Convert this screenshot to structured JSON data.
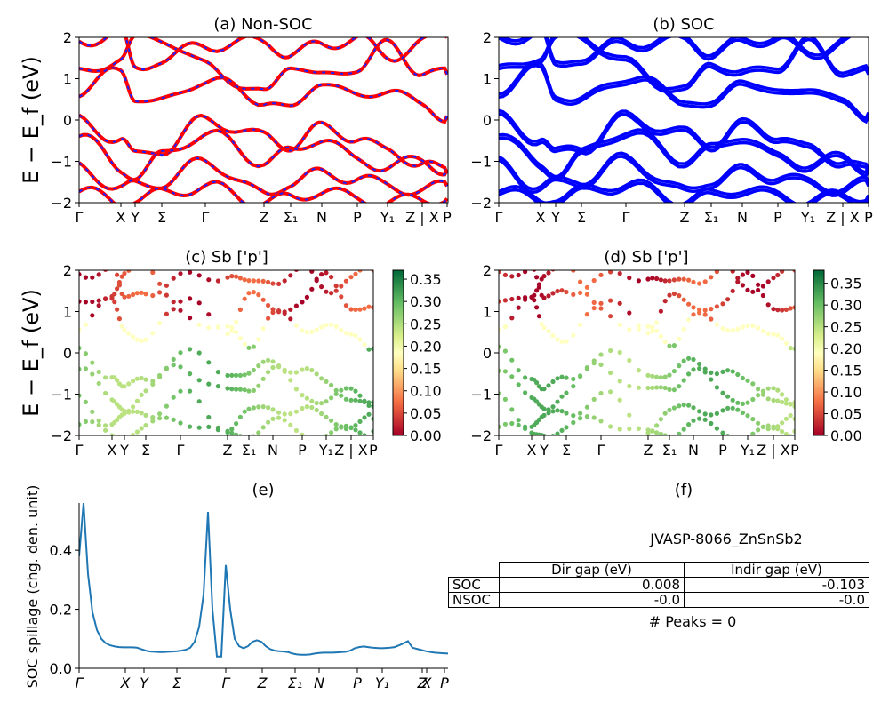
{
  "chart_data": [
    {
      "type": "line",
      "title": "(a) Non-SOC",
      "ylabel": "E − E_f (eV)",
      "ylim": [
        -2,
        2
      ],
      "yticks": [
        "2",
        "1",
        "0",
        "−1",
        "−2"
      ],
      "xticks": [
        "Γ",
        "X",
        "Y",
        "Σ",
        "Γ",
        "Z",
        "Σ₁",
        "N",
        "P",
        "Y₁",
        "Z | X",
        "P"
      ],
      "colors": {
        "primary": "#ff0000",
        "secondary": "#1f1fff"
      },
      "series_style": "red-blue dashed",
      "legend": "none"
    },
    {
      "type": "line",
      "title": "(b) SOC",
      "ylim": [
        -2,
        2
      ],
      "yticks": [
        "2",
        "1",
        "0",
        "−1",
        "−2"
      ],
      "xticks": [
        "Γ",
        "X",
        "Y",
        "Σ",
        "Γ",
        "Z",
        "Σ₁",
        "N",
        "P",
        "Y₁",
        "Z | X",
        "P"
      ],
      "colors": {
        "primary": "#0000ff"
      },
      "legend": "none"
    },
    {
      "type": "scatter",
      "title": "(c)  Sb ['p']",
      "ylabel": "E − E_f (eV)",
      "ylim": [
        -2,
        2
      ],
      "yticks": [
        "2",
        "1",
        "0",
        "−1",
        "−2"
      ],
      "xticks": [
        "Γ",
        "X",
        "Y",
        "Σ",
        "Γ",
        "Z",
        "Σ₁",
        "N",
        "P",
        "Y₁",
        "Z | X",
        "P"
      ],
      "colorbar": {
        "min": 0.0,
        "max": 0.37,
        "ticks": [
          "0.35",
          "0.30",
          "0.25",
          "0.20",
          "0.15",
          "0.10",
          "0.05",
          "0.00"
        ],
        "cmap": "RdYlGn"
      }
    },
    {
      "type": "scatter",
      "title": "(d) Sb ['p']",
      "ylim": [
        -2,
        2
      ],
      "yticks": [
        "2",
        "1",
        "0",
        "−1",
        "−2"
      ],
      "xticks": [
        "Γ",
        "X",
        "Y",
        "Σ",
        "Γ",
        "Z",
        "Σ₁",
        "N",
        "P",
        "Y₁",
        "Z | X",
        "P"
      ],
      "colorbar": {
        "min": 0.0,
        "max": 0.38,
        "ticks": [
          "0.35",
          "0.30",
          "0.25",
          "0.20",
          "0.15",
          "0.10",
          "0.05",
          "0.00"
        ],
        "cmap": "RdYlGn"
      }
    },
    {
      "type": "line",
      "title": "(e)",
      "ylabel": "SOC spillage (chg. den. unit)",
      "ylim": [
        0,
        0.56
      ],
      "yticks": [
        "0.4",
        "0.2",
        "0.0"
      ],
      "xticks": [
        "Γ",
        "X",
        "Y",
        "Σ",
        "Γ",
        "Z",
        "Σ₁",
        "N",
        "P",
        "Y₁",
        "Z",
        "X",
        "P"
      ],
      "colors": {
        "line": "#1f77b4"
      },
      "x": [
        0,
        1,
        2,
        3,
        4,
        5,
        6,
        7,
        8,
        9,
        10,
        11,
        12,
        13,
        14,
        15,
        16,
        17,
        18,
        19,
        20,
        21,
        22,
        23,
        24,
        25,
        26,
        27,
        28,
        29,
        30,
        31,
        32,
        33,
        34,
        35,
        36,
        37,
        38,
        39,
        40,
        41,
        42,
        43,
        44,
        45,
        46,
        47,
        48,
        49,
        50,
        51,
        52,
        53,
        54,
        55,
        56,
        57,
        58,
        59,
        60,
        61,
        62,
        63,
        64,
        65,
        66,
        67,
        68,
        69,
        70,
        71,
        72,
        73,
        74,
        75,
        76,
        77,
        78,
        79,
        80,
        81,
        82,
        83
      ],
      "series": [
        {
          "values": [
            0.38,
            0.56,
            0.32,
            0.19,
            0.13,
            0.1,
            0.085,
            0.078,
            0.074,
            0.072,
            0.071,
            0.071,
            0.071,
            0.07,
            0.065,
            0.06,
            0.057,
            0.056,
            0.055,
            0.055,
            0.056,
            0.057,
            0.058,
            0.06,
            0.063,
            0.07,
            0.09,
            0.14,
            0.25,
            0.53,
            0.2,
            0.04,
            0.04,
            0.35,
            0.2,
            0.1,
            0.075,
            0.068,
            0.075,
            0.09,
            0.095,
            0.09,
            0.075,
            0.065,
            0.06,
            0.058,
            0.057,
            0.055,
            0.05,
            0.047,
            0.046,
            0.046,
            0.047,
            0.05,
            0.052,
            0.053,
            0.053,
            0.053,
            0.054,
            0.055,
            0.056,
            0.06,
            0.068,
            0.072,
            0.074,
            0.072,
            0.07,
            0.069,
            0.068,
            0.069,
            0.07,
            0.072,
            0.078,
            0.085,
            0.092,
            0.07,
            0.066,
            0.062,
            0.058,
            0.055,
            0.053,
            0.052,
            0.051,
            0.05
          ]
        }
      ]
    }
  ],
  "panel_f": {
    "title": "(f)",
    "material": "JVASP-8066_ZnSnSb2",
    "table": {
      "headers": [
        "Dir gap (eV)",
        "Indir gap (eV)"
      ],
      "rows": [
        {
          "label": "SOC",
          "dir": "0.008",
          "indir": "-0.103"
        },
        {
          "label": "NSOC",
          "dir": "-0.0",
          "indir": "-0.0"
        }
      ]
    },
    "peaks": "# Peaks = 0"
  }
}
